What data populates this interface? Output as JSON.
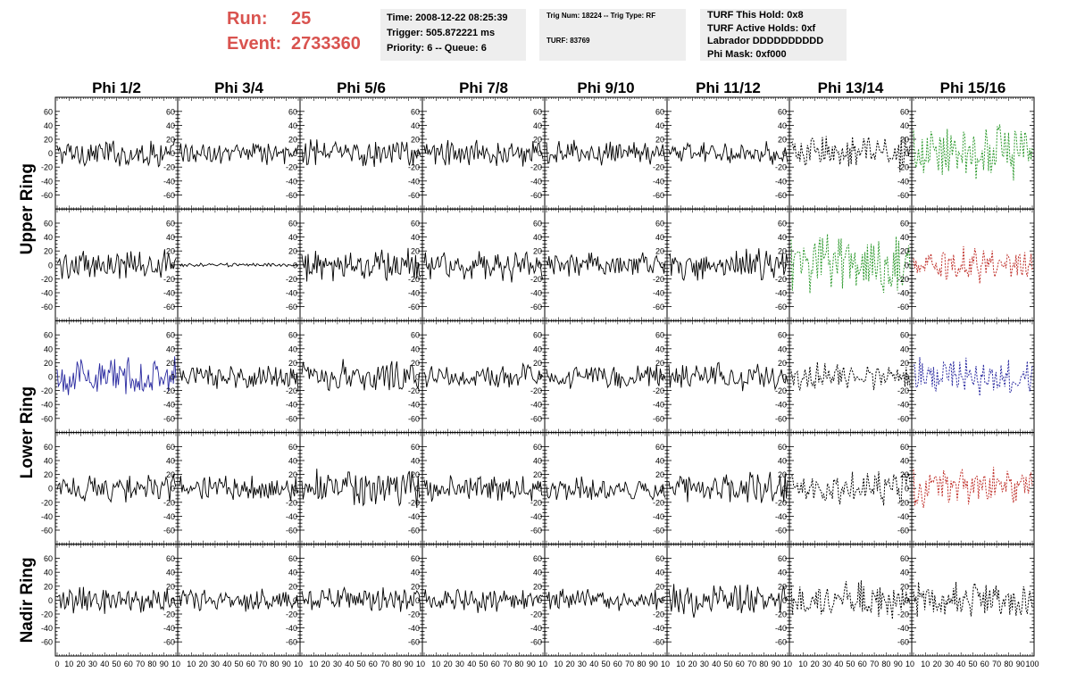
{
  "header": {
    "run_label": "Run:",
    "run_value": "25",
    "event_label": "Event:",
    "event_value": "2733360",
    "time": "Time: 2008-12-22 08:25:39",
    "trigger": "Trigger: 505.872221 ms",
    "priority_queue": "Priority: 6 -- Queue: 6",
    "trig_num_type": "Trig Num: 18224 -- Trig Type: RF",
    "turf": "TURF: 83769",
    "turf_this_hold": "TURF This Hold: 0x8",
    "turf_active_holds": "TURF Active Holds: 0xf",
    "labrador": "Labrador DDDDDDDDDD",
    "phi_mask": "Phi Mask: 0xf000"
  },
  "colors": {
    "header_red": "#d9534f",
    "trace_black": "#000000",
    "trace_green": "#2e9a2e",
    "trace_red": "#c0302a",
    "trace_blue": "#2a2aa0"
  },
  "chart_data": {
    "type": "line",
    "columns": [
      "Phi 1/2",
      "Phi 3/4",
      "Phi 5/6",
      "Phi 7/8",
      "Phi 9/10",
      "Phi 11/12",
      "Phi 13/14",
      "Phi 15/16"
    ],
    "row_labels": [
      "Upper Ring",
      "Lower Ring",
      "Nadir Ring"
    ],
    "panel_rows": 5,
    "xlim": [
      0,
      100
    ],
    "ylim": [
      -70,
      70
    ],
    "x_ticks": [
      0,
      10,
      20,
      30,
      40,
      50,
      60,
      70,
      80,
      90,
      100
    ],
    "y_ticks": [
      -60,
      -40,
      -20,
      0,
      20,
      40,
      60
    ],
    "x_tick_labels_first": [
      "0",
      "10",
      "20",
      "30",
      "40",
      "50",
      "60",
      "70",
      "80",
      "90",
      "10"
    ],
    "x_tick_labels_mid": [
      "10",
      "20",
      "30",
      "40",
      "50",
      "60",
      "70",
      "80",
      "90",
      "10"
    ],
    "x_tick_labels_last": [
      "10",
      "20",
      "30",
      "40",
      "50",
      "60",
      "70",
      "80",
      "90",
      "100"
    ],
    "trace_points": 96,
    "panels": [
      [
        {
          "style": "solid",
          "color": "black",
          "amp": 15
        },
        {
          "style": "solid",
          "color": "black",
          "amp": 12
        },
        {
          "style": "solid",
          "color": "black",
          "amp": 15
        },
        {
          "style": "solid",
          "color": "black",
          "amp": 15
        },
        {
          "style": "solid",
          "color": "black",
          "amp": 14
        },
        {
          "style": "solid",
          "color": "black",
          "amp": 12
        },
        {
          "style": "dashed",
          "color": "black",
          "amp": 20
        },
        {
          "style": "dashed",
          "color": "green",
          "amp": 30
        }
      ],
      [
        {
          "style": "solid",
          "color": "black",
          "amp": 16
        },
        {
          "style": "solid",
          "color": "black",
          "amp": 2
        },
        {
          "style": "solid",
          "color": "black",
          "amp": 18
        },
        {
          "style": "solid",
          "color": "black",
          "amp": 17
        },
        {
          "style": "solid",
          "color": "black",
          "amp": 13
        },
        {
          "style": "solid",
          "color": "black",
          "amp": 17
        },
        {
          "style": "dashed",
          "color": "green",
          "amp": 32
        },
        {
          "style": "dashed",
          "color": "red",
          "amp": 20
        }
      ],
      [
        {
          "style": "solid",
          "color": "blue",
          "amp": 20
        },
        {
          "style": "solid",
          "color": "black",
          "amp": 15
        },
        {
          "style": "solid",
          "color": "black",
          "amp": 18
        },
        {
          "style": "solid",
          "color": "black",
          "amp": 13
        },
        {
          "style": "solid",
          "color": "black",
          "amp": 13
        },
        {
          "style": "solid",
          "color": "black",
          "amp": 15
        },
        {
          "style": "dashed",
          "color": "black",
          "amp": 15
        },
        {
          "style": "dashed",
          "color": "blue",
          "amp": 20
        }
      ],
      [
        {
          "style": "solid",
          "color": "black",
          "amp": 15
        },
        {
          "style": "solid",
          "color": "black",
          "amp": 14
        },
        {
          "style": "solid",
          "color": "black",
          "amp": 20
        },
        {
          "style": "solid",
          "color": "black",
          "amp": 14
        },
        {
          "style": "solid",
          "color": "black",
          "amp": 13
        },
        {
          "style": "solid",
          "color": "black",
          "amp": 17
        },
        {
          "style": "dashed",
          "color": "black",
          "amp": 20
        },
        {
          "style": "dashed",
          "color": "red",
          "amp": 22
        }
      ],
      [
        {
          "style": "solid",
          "color": "black",
          "amp": 15
        },
        {
          "style": "solid",
          "color": "black",
          "amp": 12
        },
        {
          "style": "solid",
          "color": "black",
          "amp": 14
        },
        {
          "style": "solid",
          "color": "black",
          "amp": 13
        },
        {
          "style": "solid",
          "color": "black",
          "amp": 13
        },
        {
          "style": "solid",
          "color": "black",
          "amp": 17
        },
        {
          "style": "dashed",
          "color": "black",
          "amp": 20
        },
        {
          "style": "dashed",
          "color": "black",
          "amp": 20
        }
      ]
    ]
  }
}
